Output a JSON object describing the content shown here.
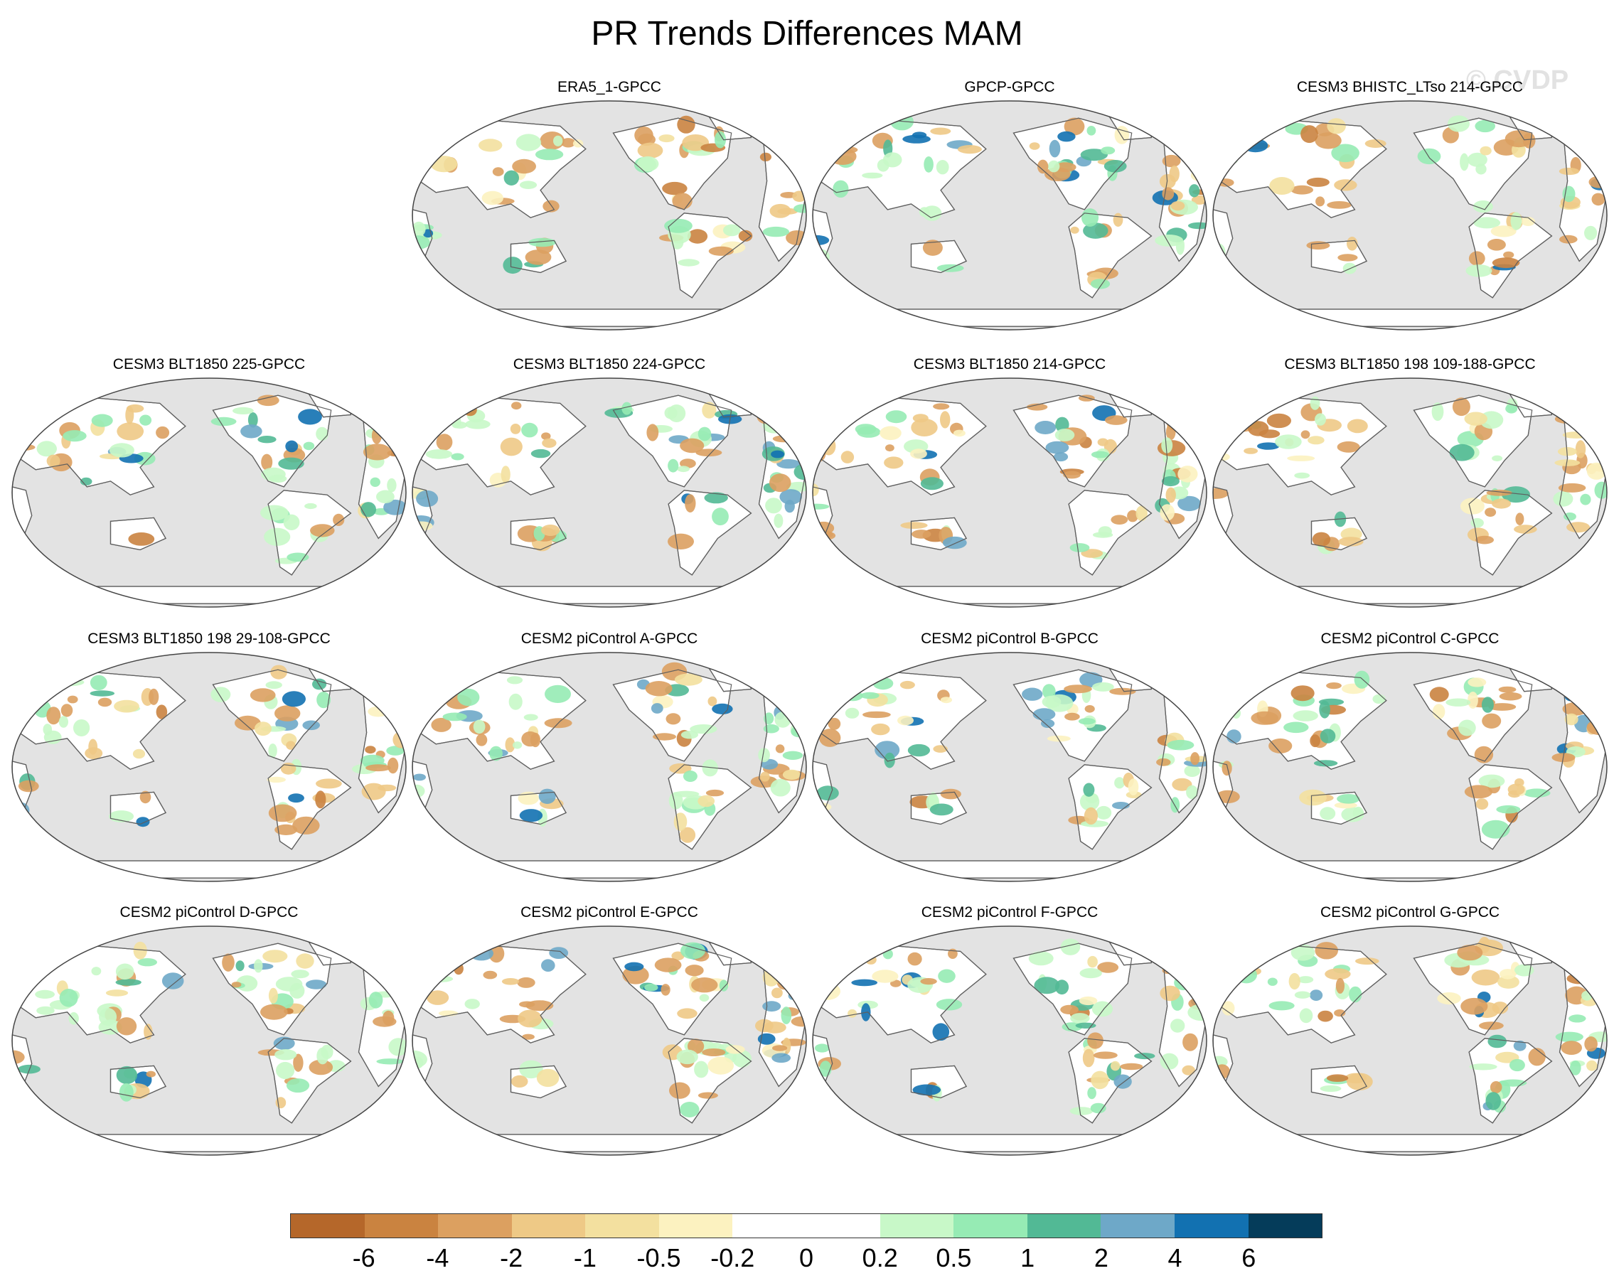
{
  "title": "PR Trends Differences MAM",
  "watermark": "© CVDP",
  "panels": [
    {
      "label": "ERA5_1-GPCC",
      "bias": "ne"
    },
    {
      "label": "GPCP-GPCC",
      "bias": "po"
    },
    {
      "label": "CESM3 BHISTC_LTso 214-GPCC",
      "bias": "mx"
    },
    {
      "label": "CESM3 BLT1850 225-GPCC",
      "bias": "po"
    },
    {
      "label": "CESM3 BLT1850 224-GPCC",
      "bias": "po"
    },
    {
      "label": "CESM3 BLT1850 214-GPCC",
      "bias": "ne"
    },
    {
      "label": "CESM3 BLT1850 198 109-188-GPCC",
      "bias": "ne"
    },
    {
      "label": "CESM3 BLT1850 198 29-108-GPCC",
      "bias": "mx"
    },
    {
      "label": "CESM2 piControl A-GPCC",
      "bias": "mx"
    },
    {
      "label": "CESM2 piControl B-GPCC",
      "bias": "mx"
    },
    {
      "label": "CESM2 piControl C-GPCC",
      "bias": "ne"
    },
    {
      "label": "CESM2 piControl D-GPCC",
      "bias": "mx"
    },
    {
      "label": "CESM2 piControl E-GPCC",
      "bias": "ne"
    },
    {
      "label": "CESM2 piControl F-GPCC",
      "bias": "po"
    },
    {
      "label": "CESM2 piControl G-GPCC",
      "bias": "mx"
    }
  ],
  "colorbar": {
    "colors": [
      "#b5672a",
      "#ca8340",
      "#dca060",
      "#eec986",
      "#f3e09f",
      "#fcf2c0",
      "#ffffff",
      "#ffffff",
      "#c8f8c8",
      "#96ebb4",
      "#52b995",
      "#6ea8c8",
      "#1271b1",
      "#053c5a"
    ],
    "labels": [
      "-6",
      "-4",
      "-2",
      "-1",
      "-0.5",
      "-0.2",
      "0",
      "0.2",
      "0.5",
      "1",
      "2",
      "4",
      "6"
    ]
  },
  "colors": {
    "ocean": "#e3e3e3",
    "land": "#ffffff",
    "coast": "#606060"
  }
}
